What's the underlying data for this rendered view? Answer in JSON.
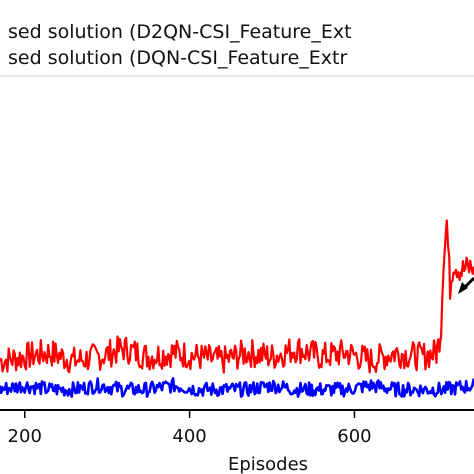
{
  "chart_data": {
    "type": "line",
    "xlabel": "Episodes",
    "ylabel": "",
    "xlim": [
      170,
      745
    ],
    "ylim": [
      0.0,
      1.0
    ],
    "x_ticks": [
      200,
      400,
      600
    ],
    "x_tick_labels": [
      "200",
      "400",
      "600"
    ],
    "grid": false,
    "legend_position": "top",
    "legend_entries": [
      {
        "label": "sed solution (D2QN-CSI_Feature_Ext",
        "color": "#ff0000"
      },
      {
        "label": "sed solution (DQN-CSI_Feature_Extr",
        "color": "#0000ff"
      }
    ],
    "series": [
      {
        "name": "sed solution (D2QN-CSI_Feature_Ext",
        "color": "#ff0000",
        "x": [
          170,
          200,
          230,
          260,
          290,
          320,
          350,
          380,
          410,
          440,
          470,
          500,
          530,
          560,
          590,
          620,
          650,
          680,
          700,
          705,
          708,
          712,
          716,
          720,
          730,
          745
        ],
        "values": [
          0.12,
          0.13,
          0.14,
          0.12,
          0.13,
          0.15,
          0.13,
          0.14,
          0.13,
          0.12,
          0.14,
          0.13,
          0.15,
          0.13,
          0.14,
          0.12,
          0.14,
          0.13,
          0.14,
          0.2,
          0.37,
          0.46,
          0.3,
          0.36,
          0.34,
          0.35
        ]
      },
      {
        "name": "sed solution (DQN-CSI_Feature_Extr",
        "color": "#0000ff",
        "x": [
          170,
          200,
          230,
          260,
          290,
          320,
          350,
          380,
          410,
          440,
          470,
          500,
          530,
          560,
          590,
          620,
          650,
          680,
          710,
          745
        ],
        "values": [
          0.05,
          0.06,
          0.05,
          0.05,
          0.06,
          0.05,
          0.05,
          0.06,
          0.05,
          0.05,
          0.05,
          0.06,
          0.05,
          0.05,
          0.05,
          0.06,
          0.05,
          0.05,
          0.05,
          0.06
        ]
      }
    ]
  }
}
